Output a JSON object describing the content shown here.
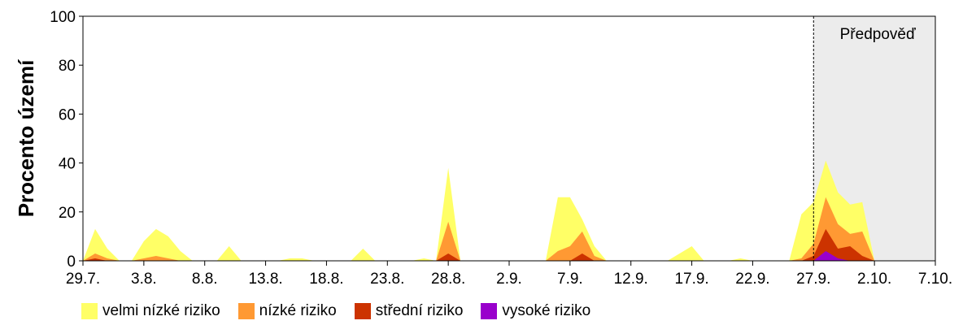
{
  "chart_data": {
    "type": "area",
    "stacked": true,
    "ylabel": "Procento území",
    "xlabel": "",
    "ylim": [
      0,
      100
    ],
    "yticks": [
      0,
      20,
      40,
      60,
      80,
      100
    ],
    "xlim": [
      "29.7.",
      "7.10."
    ],
    "xticks": [
      "29.7.",
      "3.8.",
      "8.8.",
      "13.8.",
      "18.8.",
      "23.8.",
      "28.8.",
      "2.9.",
      "7.9.",
      "12.9.",
      "17.9.",
      "22.9.",
      "27.9.",
      "2.10.",
      "7.10."
    ],
    "forecast": {
      "start": "27.9.",
      "end": "7.10.",
      "label": "Předpověď"
    },
    "grid": false,
    "legend_position": "bottom",
    "dates": [
      "29.7.",
      "30.7.",
      "31.7.",
      "1.8.",
      "2.8.",
      "3.8.",
      "4.8.",
      "5.8.",
      "6.8.",
      "7.8.",
      "8.8.",
      "9.8.",
      "10.8.",
      "11.8.",
      "12.8.",
      "13.8.",
      "14.8.",
      "15.8.",
      "16.8.",
      "17.8.",
      "18.8.",
      "19.8.",
      "20.8.",
      "21.8.",
      "22.8.",
      "23.8.",
      "24.8.",
      "25.8.",
      "26.8.",
      "27.8.",
      "28.8.",
      "29.8.",
      "30.8.",
      "31.8.",
      "1.9.",
      "2.9.",
      "3.9.",
      "4.9.",
      "5.9.",
      "6.9.",
      "7.9.",
      "8.9.",
      "9.9.",
      "10.9.",
      "11.9.",
      "12.9.",
      "13.9.",
      "14.9.",
      "15.9.",
      "16.9.",
      "17.9.",
      "18.9.",
      "19.9.",
      "20.9.",
      "21.9.",
      "22.9.",
      "23.9.",
      "24.9.",
      "25.9.",
      "26.9.",
      "27.9.",
      "28.9.",
      "29.9.",
      "30.9.",
      "1.10.",
      "2.10."
    ],
    "series": [
      {
        "name": "vysoké riziko",
        "color": "#9900CC",
        "values": [
          0,
          0,
          0,
          0,
          0,
          0,
          0,
          0,
          0,
          0,
          0,
          0,
          0,
          0,
          0,
          0,
          0,
          0,
          0,
          0,
          0,
          0,
          0,
          0,
          0,
          0,
          0,
          0,
          0,
          0,
          0,
          0,
          0,
          0,
          0,
          0,
          0,
          0,
          0,
          0,
          0,
          0,
          0,
          0,
          0,
          0,
          0,
          0,
          0,
          0,
          0,
          0,
          0,
          0,
          0,
          0,
          0,
          0,
          0,
          0,
          0,
          4,
          1,
          0,
          0,
          0
        ]
      },
      {
        "name": "střední riziko",
        "color": "#CC3300",
        "values": [
          0,
          1,
          0,
          0,
          0,
          0,
          0,
          0,
          0,
          0,
          0,
          0,
          0,
          0,
          0,
          0,
          0,
          0,
          0,
          0,
          0,
          0,
          0,
          0,
          0,
          0,
          0,
          0,
          0,
          0,
          3,
          0,
          0,
          0,
          0,
          0,
          0,
          0,
          0,
          0,
          0,
          3,
          0,
          0,
          0,
          0,
          0,
          0,
          0,
          0,
          0,
          0,
          0,
          0,
          0,
          0,
          0,
          0,
          0,
          0,
          2,
          9,
          4,
          6,
          2,
          0
        ]
      },
      {
        "name": "nízké riziko",
        "color": "#FF9933",
        "values": [
          0,
          2,
          1,
          0,
          0,
          1,
          2,
          1,
          0,
          0,
          0,
          0,
          0,
          0,
          0,
          0,
          0,
          0,
          0,
          0,
          0,
          0,
          0,
          0,
          0,
          0,
          0,
          0,
          0,
          0,
          13,
          0,
          0,
          0,
          0,
          0,
          0,
          0,
          0,
          4,
          6,
          9,
          2,
          0,
          0,
          0,
          0,
          0,
          0,
          0,
          0,
          0,
          0,
          0,
          0,
          0,
          0,
          0,
          0,
          1,
          5,
          13,
          10,
          5,
          10,
          0
        ]
      },
      {
        "name": "velmi nízké riziko",
        "color": "#FFFF66",
        "values": [
          0,
          10,
          4,
          0,
          0,
          7,
          11,
          9,
          4,
          0,
          0,
          0,
          6,
          0,
          0,
          0,
          0,
          1,
          1,
          0,
          0,
          0,
          0,
          5,
          0,
          0,
          0,
          0,
          1,
          0,
          22,
          0,
          0,
          0,
          0,
          0,
          0,
          0,
          0,
          22,
          20,
          5,
          4,
          0,
          0,
          0,
          0,
          0,
          0,
          3,
          6,
          0,
          0,
          0,
          1,
          0,
          0,
          0,
          0,
          18,
          17,
          15,
          13,
          12,
          12,
          0
        ]
      }
    ]
  },
  "legend": [
    {
      "label": "velmi nízké riziko",
      "color": "#FFFF66"
    },
    {
      "label": "nízké riziko",
      "color": "#FF9933"
    },
    {
      "label": "střední riziko",
      "color": "#CC3300"
    },
    {
      "label": "vysoké riziko",
      "color": "#9900CC"
    }
  ]
}
